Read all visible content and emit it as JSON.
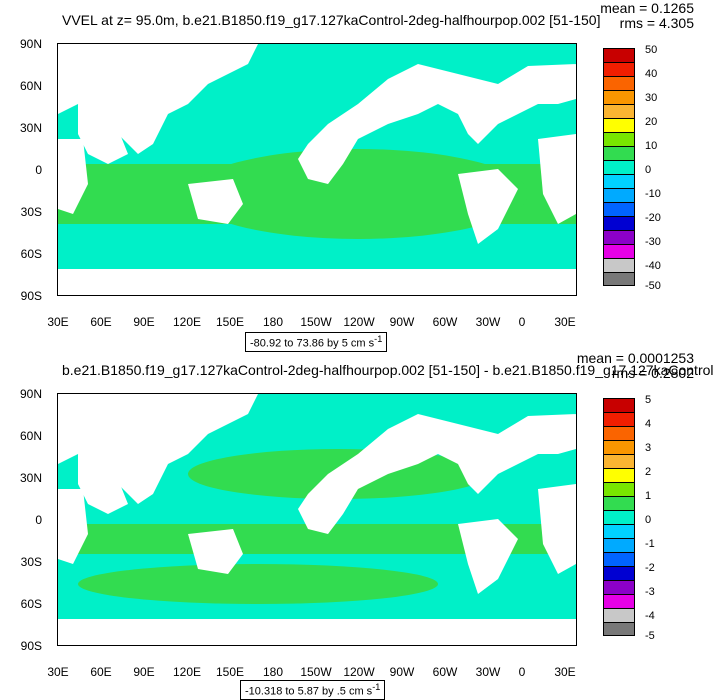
{
  "top": {
    "title": "VVEL at z=  95.0m, b.e21.B1850.f19_g17.127kaControl-2deg-halfhourpop.002 [51-150]",
    "mean": "mean = 0.1265",
    "rms": "rms = 4.305",
    "range": "-80.92 to 73.86 by 5 cm s",
    "range_sup": "-1",
    "colorbar_labels": [
      "50",
      "40",
      "30",
      "20",
      "10",
      "0",
      "-10",
      "-20",
      "-30",
      "-40",
      "-50"
    ]
  },
  "bottom": {
    "title": "b.e21.B1850.f19_g17.127kaControl-2deg-halfhourpop.002 [51-150] - b.e21.B1850.f19_g17.127kaControl",
    "mean": "mean = 0.0001253",
    "rms": "rms = 0.2802",
    "range": "-10.318 to 5.87 by .5 cm s",
    "range_sup": "-1",
    "colorbar_labels": [
      "5",
      "4",
      "3",
      "2",
      "1",
      "0",
      "-1",
      "-2",
      "-3",
      "-4",
      "-5"
    ]
  },
  "lat_labels": [
    "90N",
    "60N",
    "30N",
    "0",
    "30S",
    "60S",
    "90S"
  ],
  "lon_labels": [
    "30E",
    "60E",
    "90E",
    "120E",
    "150E",
    "180",
    "150W",
    "120W",
    "90W",
    "60W",
    "30W",
    "0",
    "30E"
  ],
  "colorbar_colors": [
    "#c80000",
    "#f01e00",
    "#fa6400",
    "#fa9600",
    "#fab432",
    "#ffff00",
    "#78e600",
    "#32dc50",
    "#00f0c8",
    "#00d2ff",
    "#00aaff",
    "#0064ff",
    "#0000d2",
    "#8c00c8",
    "#e600e6",
    "#c8c8c8",
    "#787878"
  ],
  "ocean_color": "#32dc50",
  "ocean_color_2": "#00f0c8",
  "land_color": "#ffffff"
}
